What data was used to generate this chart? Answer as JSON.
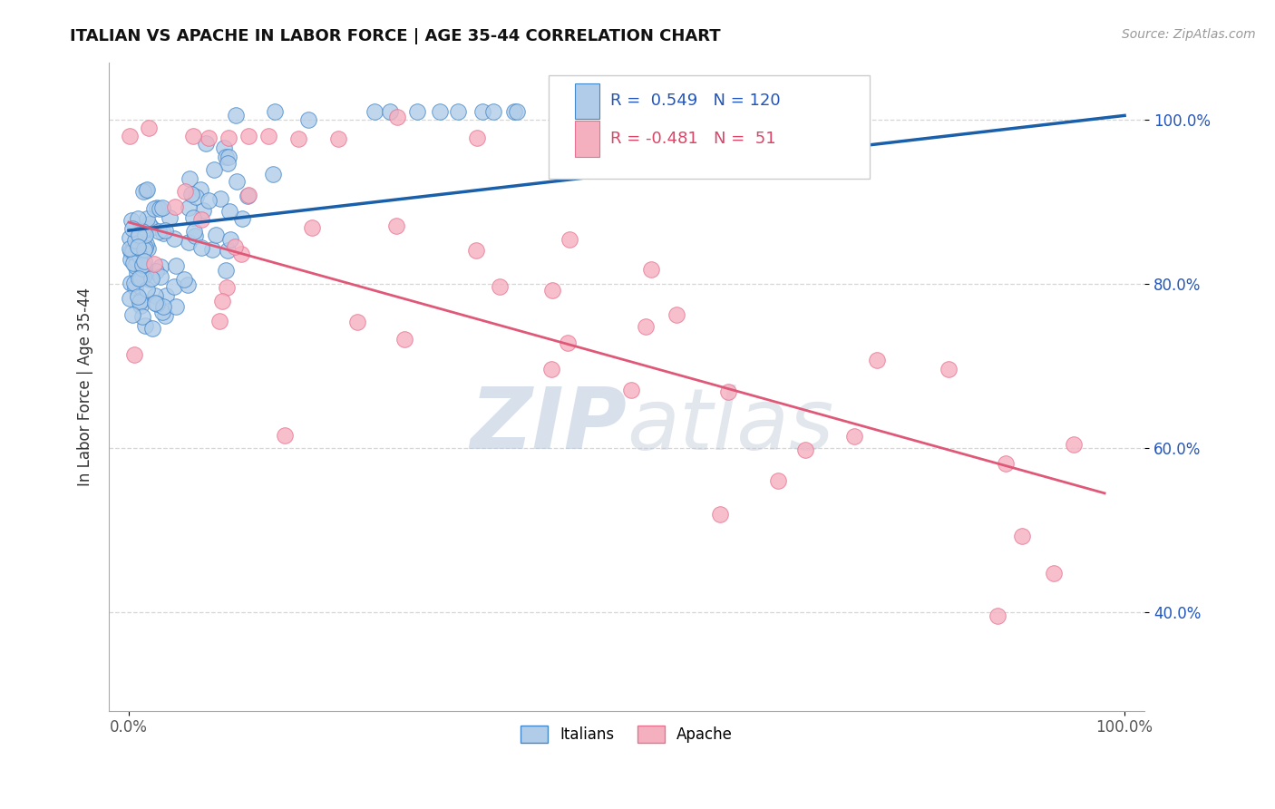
{
  "title": "ITALIAN VS APACHE IN LABOR FORCE | AGE 35-44 CORRELATION CHART",
  "source_text": "Source: ZipAtlas.com",
  "ylabel": "In Labor Force | Age 35-44",
  "xlim": [
    -0.02,
    1.02
  ],
  "ylim": [
    0.28,
    1.07
  ],
  "xtick_positions": [
    0.0,
    1.0
  ],
  "xticklabels": [
    "0.0%",
    "100.0%"
  ],
  "ytick_positions": [
    0.4,
    0.6,
    0.8,
    1.0
  ],
  "ytick_labels": [
    "40.0%",
    "60.0%",
    "80.0%",
    "100.0%"
  ],
  "R_italian": 0.549,
  "N_italian": 120,
  "R_apache": -0.481,
  "N_apache": 51,
  "italian_color": "#b0cce8",
  "apache_color": "#f5b0c0",
  "italian_edge_color": "#4488cc",
  "apache_edge_color": "#e87090",
  "italian_line_color": "#1a5faa",
  "apache_line_color": "#e05878",
  "legend_R_color_it": "#2255bb",
  "legend_R_color_ap": "#dd4466",
  "watermark_color_zip": "#c0d0e8",
  "watermark_color_atlas": "#c8c8d8",
  "bg_color": "#ffffff",
  "grid_color": "#cccccc",
  "seed": 7,
  "italian_line_x0": 0.0,
  "italian_line_x1": 1.0,
  "italian_line_y0": 0.865,
  "italian_line_y1": 1.005,
  "apache_line_x0": 0.0,
  "apache_line_x1": 0.98,
  "apache_line_y0": 0.875,
  "apache_line_y1": 0.545
}
